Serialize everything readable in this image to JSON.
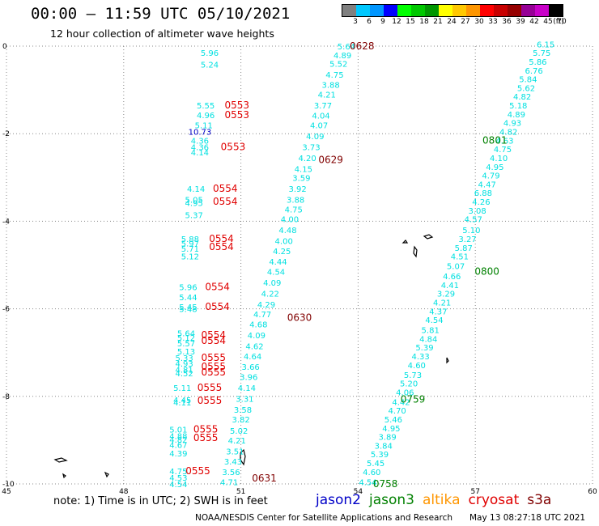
{
  "header": {
    "title": "00:00 – 11:59 UTC 05/10/2021",
    "subtitle": "12 hour collection of altimeter wave heights"
  },
  "legend": {
    "unit": "(ft)",
    "bins": [
      {
        "label": "3",
        "color": "#808080"
      },
      {
        "label": "6",
        "color": "#00c8ff"
      },
      {
        "label": "9",
        "color": "#0096ff"
      },
      {
        "label": "12",
        "color": "#0000ff"
      },
      {
        "label": "15",
        "color": "#00ff00"
      },
      {
        "label": "18",
        "color": "#00c800"
      },
      {
        "label": "21",
        "color": "#009600"
      },
      {
        "label": "24",
        "color": "#ffff00"
      },
      {
        "label": "27",
        "color": "#ffc800"
      },
      {
        "label": "30",
        "color": "#ff9600"
      },
      {
        "label": "33",
        "color": "#ff0000"
      },
      {
        "label": "36",
        "color": "#c80000"
      },
      {
        "label": "39",
        "color": "#960000"
      },
      {
        "label": "42",
        "color": "#960096"
      },
      {
        "label": "45",
        "color": "#c800c8"
      },
      {
        "label": "70",
        "color": "#000000"
      }
    ]
  },
  "map": {
    "lon_ticks": [
      "45",
      "48",
      "51",
      "54",
      "57",
      "60"
    ],
    "lat_ticks": [
      "0",
      "-2",
      "-4",
      "-6",
      "-8",
      "-10"
    ],
    "grid": true,
    "colors": {
      "cyan": "#00e0e0",
      "red": "#e00000",
      "darkred": "#800000",
      "green": "#008000",
      "blue": "#0000c8"
    },
    "passes": [
      {
        "label": "0628",
        "lon": 54.1,
        "lat": 0,
        "color": "darkred"
      },
      {
        "label": "0553",
        "lon": 50.9,
        "lat": -1.35,
        "color": "red"
      },
      {
        "label": "0553",
        "lon": 50.9,
        "lat": -1.57,
        "color": "red"
      },
      {
        "label": "0553",
        "lon": 50.8,
        "lat": -2.3,
        "color": "red"
      },
      {
        "label": "0629",
        "lon": 53.3,
        "lat": -2.6,
        "color": "darkred"
      },
      {
        "label": "0801",
        "lon": 57.5,
        "lat": -2.15,
        "color": "green"
      },
      {
        "label": "0554",
        "lon": 50.6,
        "lat": -3.25,
        "color": "red"
      },
      {
        "label": "0554",
        "lon": 50.6,
        "lat": -3.55,
        "color": "red"
      },
      {
        "label": "0554",
        "lon": 50.5,
        "lat": -4.4,
        "color": "red"
      },
      {
        "label": "0554",
        "lon": 50.5,
        "lat": -4.58,
        "color": "red"
      },
      {
        "label": "0800",
        "lon": 57.3,
        "lat": -5.15,
        "color": "green"
      },
      {
        "label": "0554",
        "lon": 50.4,
        "lat": -5.5,
        "color": "red"
      },
      {
        "label": "0554",
        "lon": 50.4,
        "lat": -5.95,
        "color": "red"
      },
      {
        "label": "0630",
        "lon": 52.5,
        "lat": -6.2,
        "color": "darkred"
      },
      {
        "label": "0554",
        "lon": 50.3,
        "lat": -6.6,
        "color": "red"
      },
      {
        "label": "0554",
        "lon": 50.3,
        "lat": -6.73,
        "color": "red"
      },
      {
        "label": "0555",
        "lon": 50.3,
        "lat": -7.12,
        "color": "red"
      },
      {
        "label": "0555",
        "lon": 50.3,
        "lat": -7.32,
        "color": "red"
      },
      {
        "label": "0555",
        "lon": 50.3,
        "lat": -7.45,
        "color": "red"
      },
      {
        "label": "0555",
        "lon": 50.2,
        "lat": -7.8,
        "color": "red"
      },
      {
        "label": "0555",
        "lon": 50.2,
        "lat": -8.1,
        "color": "red"
      },
      {
        "label": "0759",
        "lon": 55.4,
        "lat": -8.07,
        "color": "green"
      },
      {
        "label": "0555",
        "lon": 50.1,
        "lat": -8.75,
        "color": "red"
      },
      {
        "label": "0555",
        "lon": 50.1,
        "lat": -8.95,
        "color": "red"
      },
      {
        "label": "0555",
        "lon": 49.9,
        "lat": -9.7,
        "color": "red"
      },
      {
        "label": "0631",
        "lon": 51.6,
        "lat": -9.87,
        "color": "darkred"
      },
      {
        "label": "0758",
        "lon": 54.7,
        "lat": -10.0,
        "color": "green"
      }
    ],
    "observations": [
      {
        "v": "5.64",
        "lon": 53.7,
        "lat": 0.0,
        "color": "cyan"
      },
      {
        "v": "4.89",
        "lon": 53.6,
        "lat": -0.2,
        "color": "cyan"
      },
      {
        "v": "5.52",
        "lon": 53.5,
        "lat": -0.4,
        "color": "cyan"
      },
      {
        "v": "4.75",
        "lon": 53.4,
        "lat": -0.65,
        "color": "cyan"
      },
      {
        "v": "3.88",
        "lon": 53.3,
        "lat": -0.88,
        "color": "cyan"
      },
      {
        "v": "4.21",
        "lon": 53.2,
        "lat": -1.1,
        "color": "cyan"
      },
      {
        "v": "3.77",
        "lon": 53.1,
        "lat": -1.35,
        "color": "cyan"
      },
      {
        "v": "4.04",
        "lon": 53.05,
        "lat": -1.58,
        "color": "cyan"
      },
      {
        "v": "4.07",
        "lon": 53.0,
        "lat": -1.8,
        "color": "cyan"
      },
      {
        "v": "4.09",
        "lon": 52.9,
        "lat": -2.05,
        "color": "cyan"
      },
      {
        "v": "3.73",
        "lon": 52.8,
        "lat": -2.3,
        "color": "cyan"
      },
      {
        "v": "4.20",
        "lon": 52.7,
        "lat": -2.55,
        "color": "cyan"
      },
      {
        "v": "4.15",
        "lon": 52.6,
        "lat": -2.8,
        "color": "cyan"
      },
      {
        "v": "3.59",
        "lon": 52.55,
        "lat": -3.0,
        "color": "cyan"
      },
      {
        "v": "3.92",
        "lon": 52.45,
        "lat": -3.25,
        "color": "cyan"
      },
      {
        "v": "3.88",
        "lon": 52.4,
        "lat": -3.5,
        "color": "cyan"
      },
      {
        "v": "4.75",
        "lon": 52.35,
        "lat": -3.72,
        "color": "cyan"
      },
      {
        "v": "4.00",
        "lon": 52.25,
        "lat": -3.95,
        "color": "cyan"
      },
      {
        "v": "4.48",
        "lon": 52.2,
        "lat": -4.2,
        "color": "cyan"
      },
      {
        "v": "4.00",
        "lon": 52.1,
        "lat": -4.45,
        "color": "cyan"
      },
      {
        "v": "4.25",
        "lon": 52.05,
        "lat": -4.68,
        "color": "cyan"
      },
      {
        "v": "4.44",
        "lon": 51.95,
        "lat": -4.92,
        "color": "cyan"
      },
      {
        "v": "4.54",
        "lon": 51.9,
        "lat": -5.15,
        "color": "cyan"
      },
      {
        "v": "4.09",
        "lon": 51.8,
        "lat": -5.4,
        "color": "cyan"
      },
      {
        "v": "4.22",
        "lon": 51.75,
        "lat": -5.65,
        "color": "cyan"
      },
      {
        "v": "4.29",
        "lon": 51.65,
        "lat": -5.9,
        "color": "cyan"
      },
      {
        "v": "4.77",
        "lon": 51.55,
        "lat": -6.12,
        "color": "cyan"
      },
      {
        "v": "4.68",
        "lon": 51.45,
        "lat": -6.35,
        "color": "cyan"
      },
      {
        "v": "4.09",
        "lon": 51.4,
        "lat": -6.6,
        "color": "cyan"
      },
      {
        "v": "4.62",
        "lon": 51.35,
        "lat": -6.85,
        "color": "cyan"
      },
      {
        "v": "4.64",
        "lon": 51.3,
        "lat": -7.08,
        "color": "cyan"
      },
      {
        "v": "3.66",
        "lon": 51.25,
        "lat": -7.32,
        "color": "cyan"
      },
      {
        "v": "3.96",
        "lon": 51.2,
        "lat": -7.55,
        "color": "cyan"
      },
      {
        "v": "4.14",
        "lon": 51.15,
        "lat": -7.8,
        "color": "cyan"
      },
      {
        "v": "3.31",
        "lon": 51.1,
        "lat": -8.05,
        "color": "cyan"
      },
      {
        "v": "3.58",
        "lon": 51.05,
        "lat": -8.3,
        "color": "cyan"
      },
      {
        "v": "3.82",
        "lon": 51.0,
        "lat": -8.52,
        "color": "cyan"
      },
      {
        "v": "5.02",
        "lon": 50.95,
        "lat": -8.78,
        "color": "cyan"
      },
      {
        "v": "4.21",
        "lon": 50.9,
        "lat": -9.0,
        "color": "cyan"
      },
      {
        "v": "3.51",
        "lon": 50.85,
        "lat": -9.25,
        "color": "cyan"
      },
      {
        "v": "3.43",
        "lon": 50.8,
        "lat": -9.48,
        "color": "cyan"
      },
      {
        "v": "3.56",
        "lon": 50.75,
        "lat": -9.72,
        "color": "cyan"
      },
      {
        "v": "4.71",
        "lon": 50.7,
        "lat": -9.95,
        "color": "cyan"
      },
      {
        "v": "6.15",
        "lon": 58.8,
        "lat": 0.05,
        "color": "cyan"
      },
      {
        "v": "5.75",
        "lon": 58.7,
        "lat": -0.15,
        "color": "cyan"
      },
      {
        "v": "5.86",
        "lon": 58.6,
        "lat": -0.35,
        "color": "cyan"
      },
      {
        "v": "6.76",
        "lon": 58.5,
        "lat": -0.55,
        "color": "cyan"
      },
      {
        "v": "5.84",
        "lon": 58.35,
        "lat": -0.75,
        "color": "cyan"
      },
      {
        "v": "5.62",
        "lon": 58.3,
        "lat": -0.95,
        "color": "cyan"
      },
      {
        "v": "4.82",
        "lon": 58.2,
        "lat": -1.15,
        "color": "cyan"
      },
      {
        "v": "5.18",
        "lon": 58.1,
        "lat": -1.35,
        "color": "cyan"
      },
      {
        "v": "4.89",
        "lon": 58.05,
        "lat": -1.55,
        "color": "cyan"
      },
      {
        "v": "4.93",
        "lon": 57.95,
        "lat": -1.75,
        "color": "cyan"
      },
      {
        "v": "4.82",
        "lon": 57.85,
        "lat": -1.95,
        "color": "cyan"
      },
      {
        "v": "4.63",
        "lon": 57.75,
        "lat": -2.15,
        "color": "cyan"
      },
      {
        "v": "4.75",
        "lon": 57.7,
        "lat": -2.35,
        "color": "cyan"
      },
      {
        "v": "4.10",
        "lon": 57.6,
        "lat": -2.55,
        "color": "cyan"
      },
      {
        "v": "4.95",
        "lon": 57.5,
        "lat": -2.75,
        "color": "cyan"
      },
      {
        "v": "4.79",
        "lon": 57.4,
        "lat": -2.95,
        "color": "cyan"
      },
      {
        "v": "4.47",
        "lon": 57.3,
        "lat": -3.15,
        "color": "cyan"
      },
      {
        "v": "6.88",
        "lon": 57.2,
        "lat": -3.35,
        "color": "cyan"
      },
      {
        "v": "4.26",
        "lon": 57.15,
        "lat": -3.55,
        "color": "cyan"
      },
      {
        "v": "3.08",
        "lon": 57.05,
        "lat": -3.75,
        "color": "cyan"
      },
      {
        "v": "4.57",
        "lon": 56.95,
        "lat": -3.95,
        "color": "cyan"
      },
      {
        "v": "5.10",
        "lon": 56.9,
        "lat": -4.2,
        "color": "cyan"
      },
      {
        "v": "3.27",
        "lon": 56.8,
        "lat": -4.4,
        "color": "cyan"
      },
      {
        "v": "5.87",
        "lon": 56.7,
        "lat": -4.6,
        "color": "cyan"
      },
      {
        "v": "4.51",
        "lon": 56.6,
        "lat": -4.8,
        "color": "cyan"
      },
      {
        "v": "5.07",
        "lon": 56.5,
        "lat": -5.02,
        "color": "cyan"
      },
      {
        "v": "4.66",
        "lon": 56.4,
        "lat": -5.25,
        "color": "cyan"
      },
      {
        "v": "4.41",
        "lon": 56.35,
        "lat": -5.45,
        "color": "cyan"
      },
      {
        "v": "3.29",
        "lon": 56.25,
        "lat": -5.65,
        "color": "cyan"
      },
      {
        "v": "4.21",
        "lon": 56.15,
        "lat": -5.85,
        "color": "cyan"
      },
      {
        "v": "4.37",
        "lon": 56.05,
        "lat": -6.05,
        "color": "cyan"
      },
      {
        "v": "4.54",
        "lon": 55.95,
        "lat": -6.25,
        "color": "cyan"
      },
      {
        "v": "5.81",
        "lon": 55.85,
        "lat": -6.48,
        "color": "cyan"
      },
      {
        "v": "4.84",
        "lon": 55.8,
        "lat": -6.68,
        "color": "cyan"
      },
      {
        "v": "5.39",
        "lon": 55.7,
        "lat": -6.88,
        "color": "cyan"
      },
      {
        "v": "4.33",
        "lon": 55.6,
        "lat": -7.08,
        "color": "cyan"
      },
      {
        "v": "4.60",
        "lon": 55.5,
        "lat": -7.28,
        "color": "cyan"
      },
      {
        "v": "5.73",
        "lon": 55.4,
        "lat": -7.5,
        "color": "cyan"
      },
      {
        "v": "5.20",
        "lon": 55.3,
        "lat": -7.7,
        "color": "cyan"
      },
      {
        "v": "4.06",
        "lon": 55.2,
        "lat": -7.9,
        "color": "cyan"
      },
      {
        "v": "4.42",
        "lon": 55.1,
        "lat": -8.12,
        "color": "cyan"
      },
      {
        "v": "4.70",
        "lon": 55.0,
        "lat": -8.32,
        "color": "cyan"
      },
      {
        "v": "5.46",
        "lon": 54.9,
        "lat": -8.52,
        "color": "cyan"
      },
      {
        "v": "4.95",
        "lon": 54.85,
        "lat": -8.72,
        "color": "cyan"
      },
      {
        "v": "3.89",
        "lon": 54.75,
        "lat": -8.92,
        "color": "cyan"
      },
      {
        "v": "3.84",
        "lon": 54.65,
        "lat": -9.12,
        "color": "cyan"
      },
      {
        "v": "5.39",
        "lon": 54.55,
        "lat": -9.32,
        "color": "cyan"
      },
      {
        "v": "5.45",
        "lon": 54.45,
        "lat": -9.52,
        "color": "cyan"
      },
      {
        "v": "4.60",
        "lon": 54.35,
        "lat": -9.72,
        "color": "cyan"
      },
      {
        "v": "4.54",
        "lon": 54.25,
        "lat": -9.95,
        "color": "cyan"
      },
      {
        "v": "5.96",
        "lon": 50.2,
        "lat": -0.15,
        "color": "cyan"
      },
      {
        "v": "5.24",
        "lon": 50.2,
        "lat": -0.42,
        "color": "cyan"
      },
      {
        "v": "5.55",
        "lon": 50.1,
        "lat": -1.35,
        "color": "cyan"
      },
      {
        "v": "4.96",
        "lon": 50.1,
        "lat": -1.57,
        "color": "cyan"
      },
      {
        "v": "5.11",
        "lon": 50.05,
        "lat": -1.8,
        "color": "cyan"
      },
      {
        "v": "10.73",
        "lon": 49.95,
        "lat": -1.95,
        "color": "blue"
      },
      {
        "v": "4.36",
        "lon": 49.95,
        "lat": -2.15,
        "color": "cyan"
      },
      {
        "v": "4.36",
        "lon": 49.95,
        "lat": -2.3,
        "color": "cyan"
      },
      {
        "v": "4.14",
        "lon": 49.95,
        "lat": -2.42,
        "color": "cyan"
      },
      {
        "v": "4.14",
        "lon": 49.85,
        "lat": -3.25,
        "color": "cyan"
      },
      {
        "v": "5.05",
        "lon": 49.8,
        "lat": -3.5,
        "color": "cyan"
      },
      {
        "v": "4.95",
        "lon": 49.8,
        "lat": -3.58,
        "color": "cyan"
      },
      {
        "v": "5.37",
        "lon": 49.8,
        "lat": -3.85,
        "color": "cyan"
      },
      {
        "v": "5.88",
        "lon": 49.7,
        "lat": -4.4,
        "color": "cyan"
      },
      {
        "v": "5.97",
        "lon": 49.7,
        "lat": -4.5,
        "color": "cyan"
      },
      {
        "v": "5.71",
        "lon": 49.7,
        "lat": -4.62,
        "color": "cyan"
      },
      {
        "v": "5.12",
        "lon": 49.7,
        "lat": -4.8,
        "color": "cyan"
      },
      {
        "v": "5.96",
        "lon": 49.65,
        "lat": -5.5,
        "color": "cyan"
      },
      {
        "v": "5.44",
        "lon": 49.65,
        "lat": -5.73,
        "color": "cyan"
      },
      {
        "v": "5.45",
        "lon": 49.65,
        "lat": -5.95,
        "color": "cyan"
      },
      {
        "v": "5.48",
        "lon": 49.65,
        "lat": -6.0,
        "color": "cyan"
      },
      {
        "v": "5.64",
        "lon": 49.6,
        "lat": -6.55,
        "color": "cyan"
      },
      {
        "v": "5.12",
        "lon": 49.6,
        "lat": -6.65,
        "color": "cyan"
      },
      {
        "v": "5.57",
        "lon": 49.6,
        "lat": -6.78,
        "color": "cyan"
      },
      {
        "v": "5.13",
        "lon": 49.6,
        "lat": -6.97,
        "color": "cyan"
      },
      {
        "v": "5.33",
        "lon": 49.55,
        "lat": -7.12,
        "color": "cyan"
      },
      {
        "v": "4.93",
        "lon": 49.55,
        "lat": -7.25,
        "color": "cyan"
      },
      {
        "v": "4.81",
        "lon": 49.55,
        "lat": -7.38,
        "color": "cyan"
      },
      {
        "v": "4.52",
        "lon": 49.55,
        "lat": -7.47,
        "color": "cyan"
      },
      {
        "v": "5.11",
        "lon": 49.5,
        "lat": -7.8,
        "color": "cyan"
      },
      {
        "v": "4.45",
        "lon": 49.5,
        "lat": -8.08,
        "color": "cyan"
      },
      {
        "v": "4.11",
        "lon": 49.5,
        "lat": -8.13,
        "color": "cyan"
      },
      {
        "v": "5.01",
        "lon": 49.4,
        "lat": -8.75,
        "color": "cyan"
      },
      {
        "v": "4.88",
        "lon": 49.4,
        "lat": -8.9,
        "color": "cyan"
      },
      {
        "v": "4.82",
        "lon": 49.4,
        "lat": -8.98,
        "color": "cyan"
      },
      {
        "v": "4.67",
        "lon": 49.4,
        "lat": -9.1,
        "color": "cyan"
      },
      {
        "v": "4.39",
        "lon": 49.4,
        "lat": -9.3,
        "color": "cyan"
      },
      {
        "v": "4.75",
        "lon": 49.4,
        "lat": -9.7,
        "color": "cyan"
      },
      {
        "v": "4.53",
        "lon": 49.4,
        "lat": -9.85,
        "color": "cyan"
      },
      {
        "v": "4.54",
        "lon": 49.4,
        "lat": -10.0,
        "color": "cyan"
      }
    ]
  },
  "footer": {
    "note": "note: 1) Time is in UTC; 2) SWH is in feet",
    "satellites": [
      {
        "name": "jason2",
        "color": "#0000c8"
      },
      {
        "name": "jason3",
        "color": "#008000"
      },
      {
        "name": "altika",
        "color": "#ff9600"
      },
      {
        "name": "cryosat",
        "color": "#e00000"
      },
      {
        "name": "s3a",
        "color": "#800000"
      }
    ],
    "credit": "NOAA/NESDIS Center for Satellite Applications and Research",
    "timestamp": "May 13 08:27:18 UTC 2021"
  }
}
